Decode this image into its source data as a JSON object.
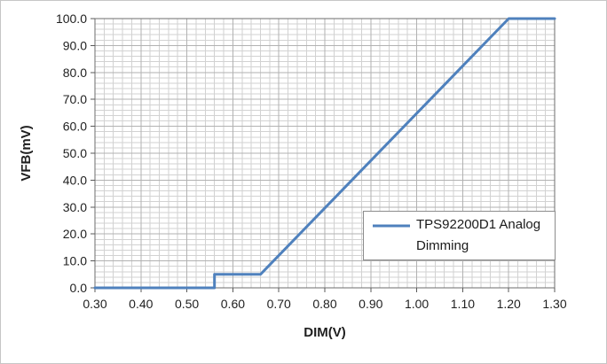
{
  "chart_data": {
    "type": "line",
    "xlabel": "DIM(V)",
    "ylabel": "VFB(mV)",
    "xlim": [
      0.3,
      1.3
    ],
    "ylim": [
      0.0,
      100.0
    ],
    "x_major_ticks": [
      0.3,
      0.4,
      0.5,
      0.6,
      0.7,
      0.8,
      0.9,
      1.0,
      1.1,
      1.2,
      1.3
    ],
    "x_tick_labels": [
      "0.30",
      "0.40",
      "0.50",
      "0.60",
      "0.70",
      "0.80",
      "0.90",
      "1.00",
      "1.10",
      "1.20",
      "1.30"
    ],
    "y_major_ticks": [
      0,
      10,
      20,
      30,
      40,
      50,
      60,
      70,
      80,
      90,
      100
    ],
    "y_tick_labels": [
      "0.0",
      "10.0",
      "20.0",
      "30.0",
      "40.0",
      "50.0",
      "60.0",
      "70.0",
      "80.0",
      "90.0",
      "100.0"
    ],
    "x_minor_step": 0.02,
    "y_minor_step": 2.0,
    "grid": "major+minor",
    "legend": {
      "position": "inside-lower-right",
      "entries": [
        "TPS92200D1 Analog Dimming"
      ]
    },
    "series": [
      {
        "name": "TPS92200D1 Analog Dimming",
        "color": "#4F81BD",
        "x": [
          0.3,
          0.56,
          0.56,
          0.66,
          1.2,
          1.3
        ],
        "y": [
          0.0,
          0.0,
          5.0,
          5.0,
          100.0,
          100.0
        ]
      }
    ],
    "colors": {
      "minor_grid": "#d2d2d2",
      "major_grid": "#b2b2b2",
      "plot_border": "#6e6e6e",
      "tick": "#595959",
      "text": "#1f1f1f"
    }
  }
}
